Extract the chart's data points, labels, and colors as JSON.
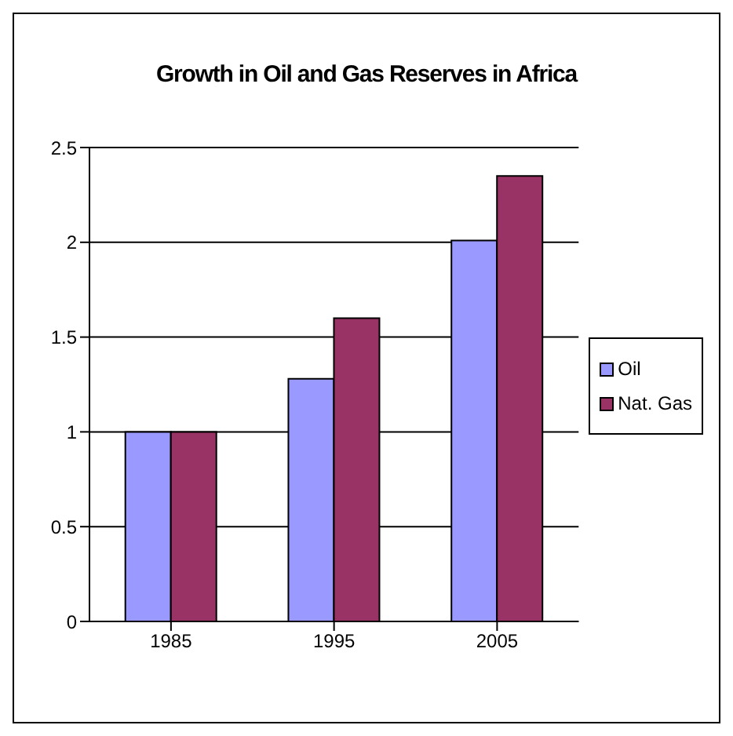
{
  "chart_data": {
    "type": "bar",
    "title": "Growth in Oil and Gas Reserves in Africa",
    "categories": [
      "1985",
      "1995",
      "2005"
    ],
    "series": [
      {
        "name": "Oil",
        "color": "#9999ff",
        "values": [
          1,
          1.28,
          2.01
        ]
      },
      {
        "name": "Nat. Gas",
        "color": "#993366",
        "values": [
          1,
          1.6,
          2.35
        ]
      }
    ],
    "ylim": [
      0,
      2.5
    ],
    "yticks": [
      0,
      0.5,
      1,
      1.5,
      2,
      2.5
    ],
    "grid": "y",
    "legend": "right"
  }
}
